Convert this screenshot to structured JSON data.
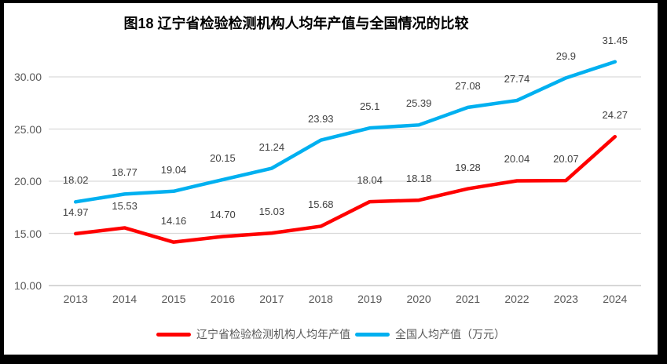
{
  "chart_data": {
    "type": "line",
    "title": "图18 辽宁省检验检测机构人均年产值与全国情况的比较",
    "categories": [
      "2013",
      "2014",
      "2015",
      "2016",
      "2017",
      "2018",
      "2019",
      "2020",
      "2021",
      "2022",
      "2023",
      "2024"
    ],
    "series": [
      {
        "key": "liaoning",
        "name": "辽宁省检验检测机构人均年产值",
        "color": "#FF0000",
        "values": [
          14.97,
          15.53,
          14.16,
          14.7,
          15.03,
          15.68,
          18.04,
          18.18,
          19.28,
          20.04,
          20.07,
          24.27
        ],
        "labels": [
          "14.97",
          "15.53",
          "14.16",
          "14.70",
          "15.03",
          "15.68",
          "18.04",
          "18.18",
          "19.28",
          "20.04",
          "20.07",
          "24.27"
        ]
      },
      {
        "key": "national",
        "name": "全国人均产值（万元）",
        "color": "#00B0F0",
        "values": [
          18.02,
          18.77,
          19.04,
          20.15,
          21.24,
          23.93,
          25.1,
          25.39,
          27.08,
          27.74,
          29.9,
          31.45
        ],
        "labels": [
          "18.02",
          "18.77",
          "19.04",
          "20.15",
          "21.24",
          "23.93",
          "25.1",
          "25.39",
          "27.08",
          "27.74",
          "29.9",
          "31.45"
        ]
      }
    ],
    "y_axis": {
      "min": 10,
      "max": 30,
      "tick_interval": 5,
      "ticks": [
        "10.00",
        "15.00",
        "20.00",
        "25.00",
        "30.00"
      ]
    },
    "xlabel": "",
    "ylabel": "",
    "grid": true,
    "gridline_color": "#D9D9D9",
    "axis_line_color": "#BFBFBF",
    "legend_position": "bottom"
  }
}
